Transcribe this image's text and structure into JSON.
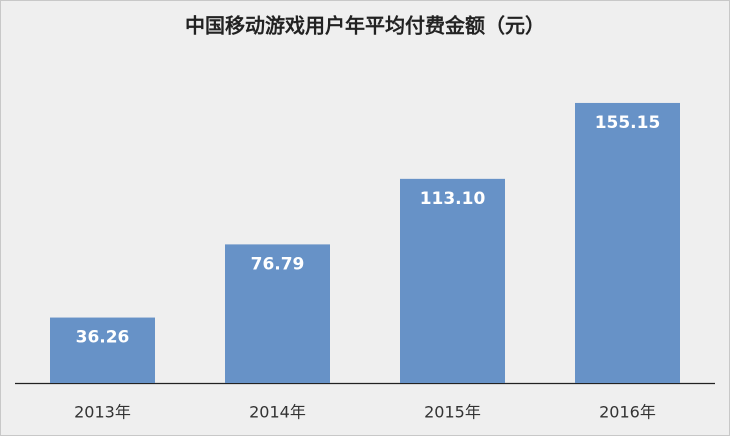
{
  "chart_data": {
    "type": "bar",
    "title": "中国移动游戏用户年平均付费金额（元）",
    "categories": [
      "2013年",
      "2014年",
      "2015年",
      "2016年"
    ],
    "values": [
      36.26,
      76.79,
      113.1,
      155.15
    ],
    "value_labels": [
      "36.26",
      "76.79",
      "113.10",
      "155.15"
    ],
    "color": "#6792c7"
  }
}
